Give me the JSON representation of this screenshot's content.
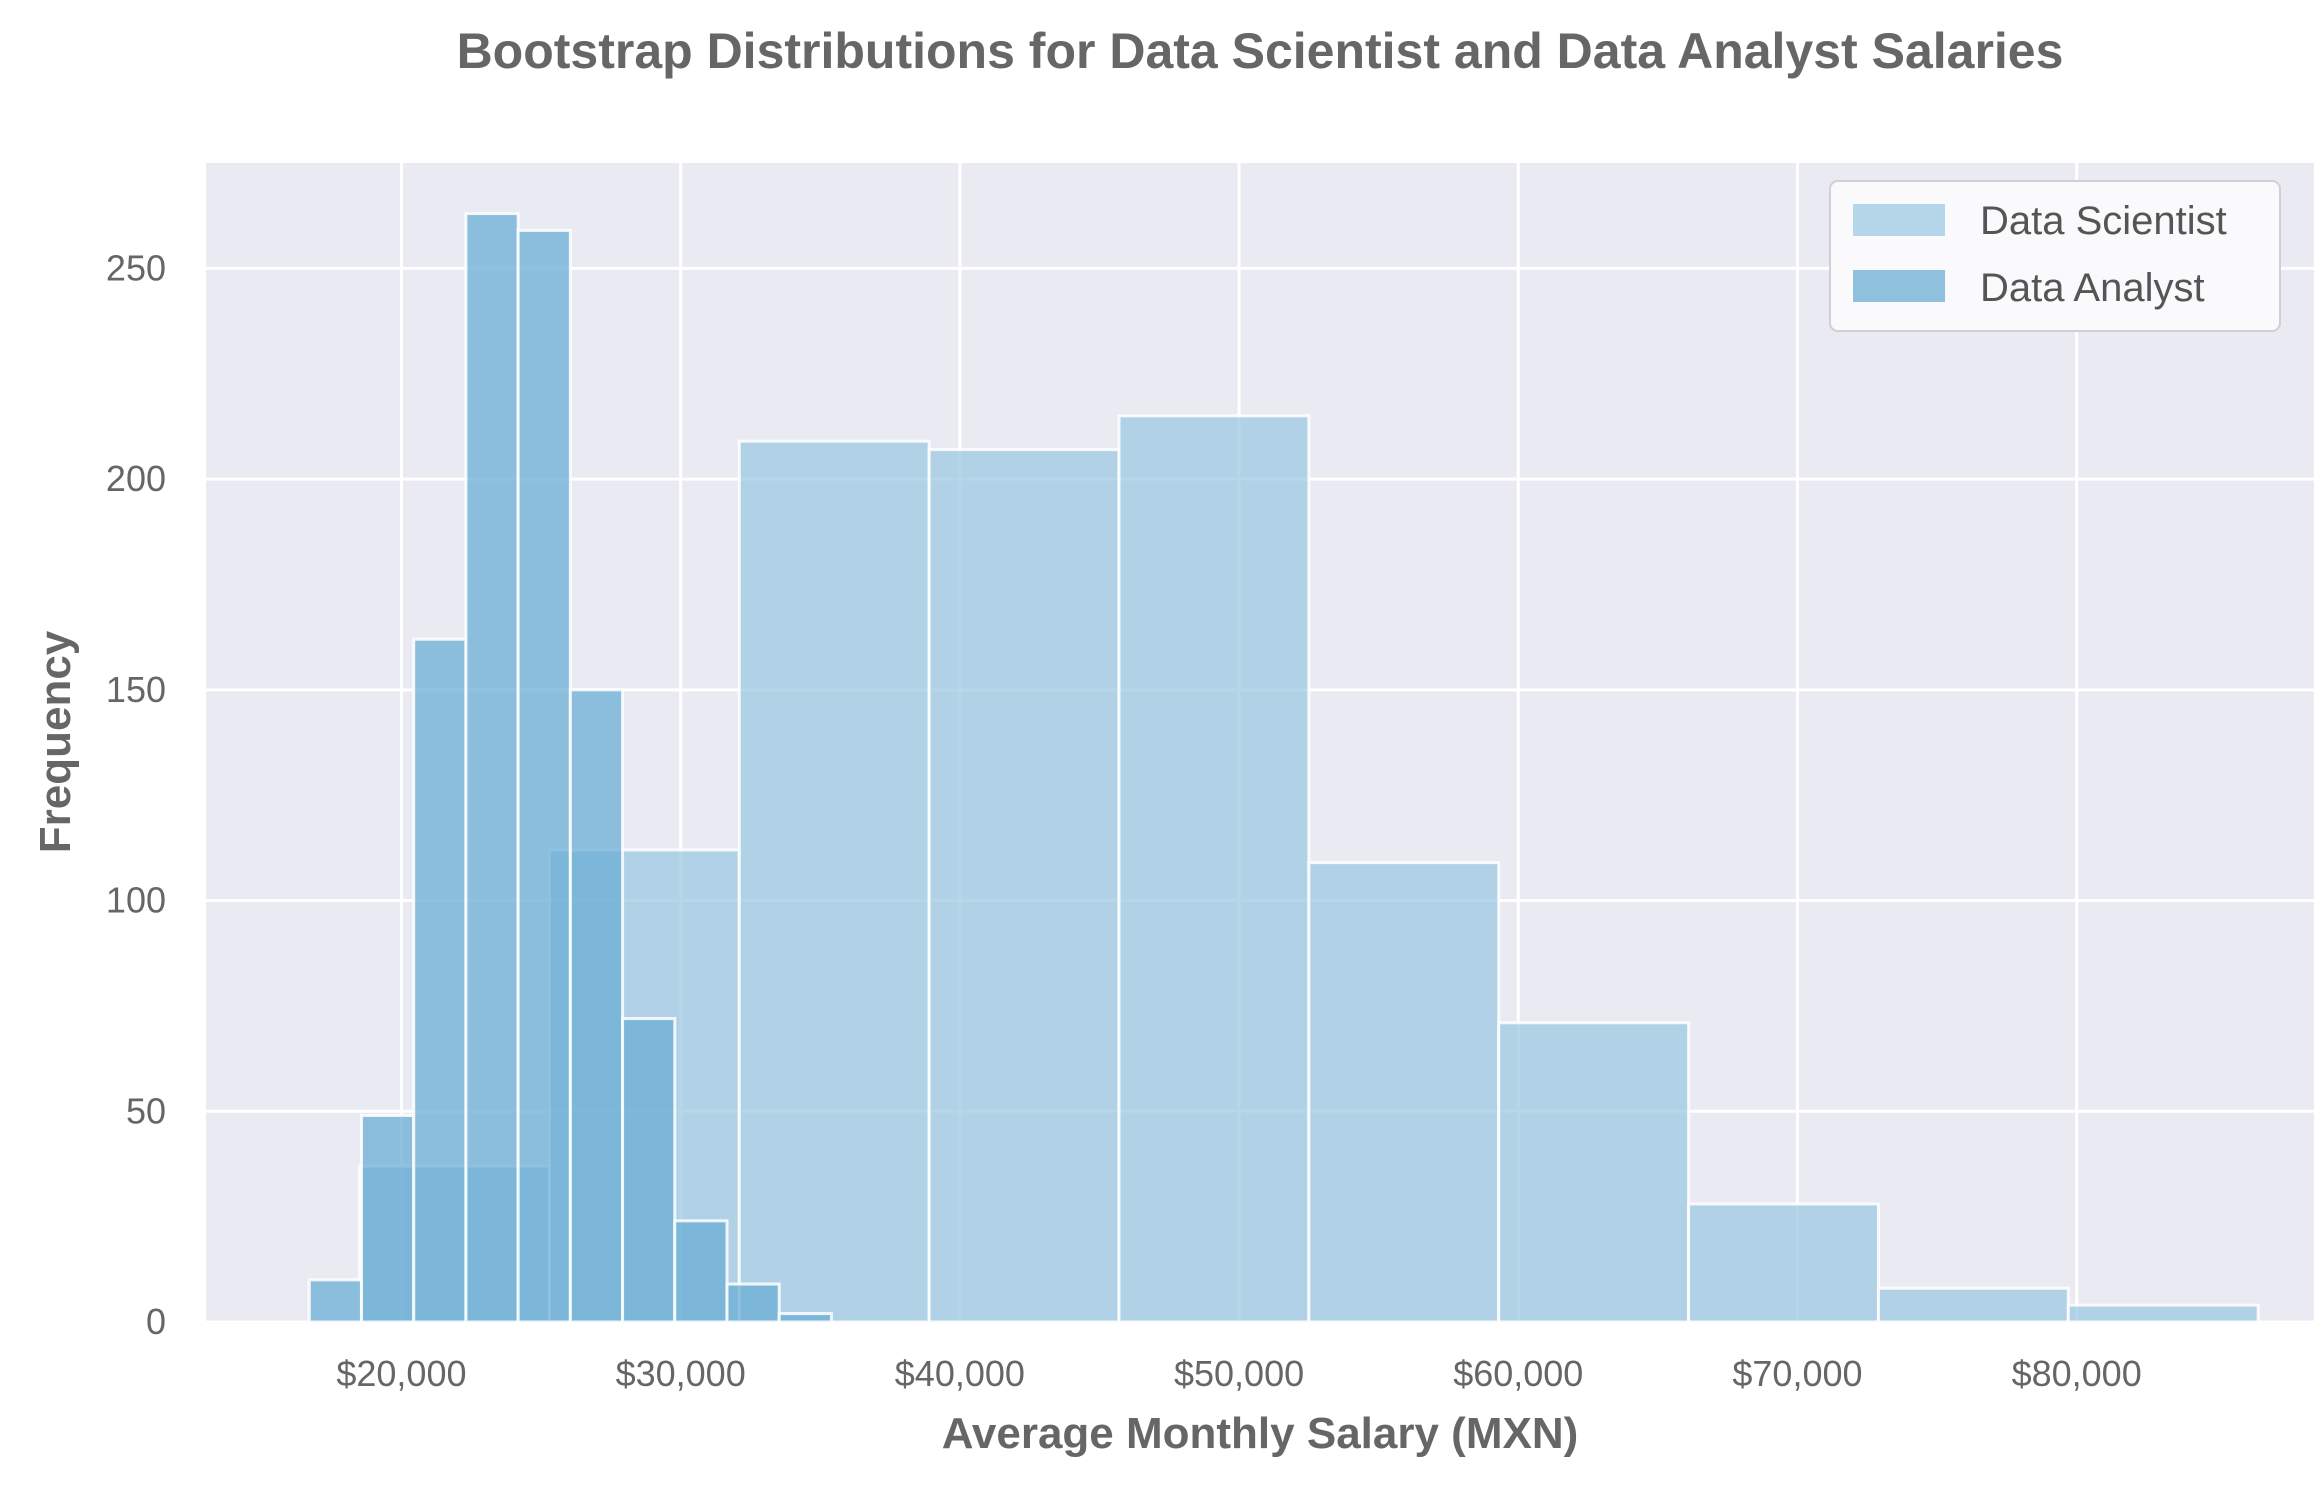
{
  "chart_data": {
    "type": "histogram",
    "title": "Bootstrap Distributions for Data Scientist and Data Analyst Salaries",
    "xlabel": "Average Monthly Salary (MXN)",
    "ylabel": "Frequency",
    "xlim": [
      13000,
      88500
    ],
    "ylim": [
      0,
      275
    ],
    "grid": true,
    "legend_position": "top-right",
    "x_ticks": [
      {
        "value": 20000,
        "label": "$20,000"
      },
      {
        "value": 30000,
        "label": "$30,000"
      },
      {
        "value": 40000,
        "label": "$40,000"
      },
      {
        "value": 50000,
        "label": "$50,000"
      },
      {
        "value": 60000,
        "label": "$60,000"
      },
      {
        "value": 70000,
        "label": "$70,000"
      },
      {
        "value": 80000,
        "label": "$80,000"
      }
    ],
    "y_ticks": [
      {
        "value": 0,
        "label": "0"
      },
      {
        "value": 50,
        "label": "50"
      },
      {
        "value": 100,
        "label": "100"
      },
      {
        "value": 150,
        "label": "150"
      },
      {
        "value": 200,
        "label": "200"
      },
      {
        "value": 250,
        "label": "250"
      }
    ],
    "series": [
      {
        "name": "Data Scientist",
        "color": "#9ecae1",
        "opacity": 0.75,
        "bins": [
          {
            "x0": 18500,
            "x1": 25300,
            "count": 37
          },
          {
            "x0": 25300,
            "x1": 32100,
            "count": 112
          },
          {
            "x0": 32100,
            "x1": 38900,
            "count": 209
          },
          {
            "x0": 38900,
            "x1": 45700,
            "count": 207
          },
          {
            "x0": 45700,
            "x1": 52500,
            "count": 215
          },
          {
            "x0": 52500,
            "x1": 59300,
            "count": 109
          },
          {
            "x0": 59300,
            "x1": 66100,
            "count": 71
          },
          {
            "x0": 66100,
            "x1": 72900,
            "count": 28
          },
          {
            "x0": 72900,
            "x1": 79700,
            "count": 8
          },
          {
            "x0": 79700,
            "x1": 86500,
            "count": 4
          }
        ]
      },
      {
        "name": "Data Analyst",
        "color": "#6baed6",
        "opacity": 0.75,
        "bins": [
          {
            "x0": 16700,
            "x1": 18570,
            "count": 10
          },
          {
            "x0": 18570,
            "x1": 20440,
            "count": 49
          },
          {
            "x0": 20440,
            "x1": 22310,
            "count": 162
          },
          {
            "x0": 22310,
            "x1": 24180,
            "count": 263
          },
          {
            "x0": 24180,
            "x1": 26050,
            "count": 259
          },
          {
            "x0": 26050,
            "x1": 27920,
            "count": 150
          },
          {
            "x0": 27920,
            "x1": 29790,
            "count": 72
          },
          {
            "x0": 29790,
            "x1": 31660,
            "count": 24
          },
          {
            "x0": 31660,
            "x1": 33530,
            "count": 9
          },
          {
            "x0": 33530,
            "x1": 35400,
            "count": 2
          }
        ]
      }
    ]
  },
  "style": {
    "plot_background": "#eaeaf2",
    "grid_color": "#ffffff",
    "bar_edge_color": "#ffffff",
    "text_color": "#666666"
  }
}
